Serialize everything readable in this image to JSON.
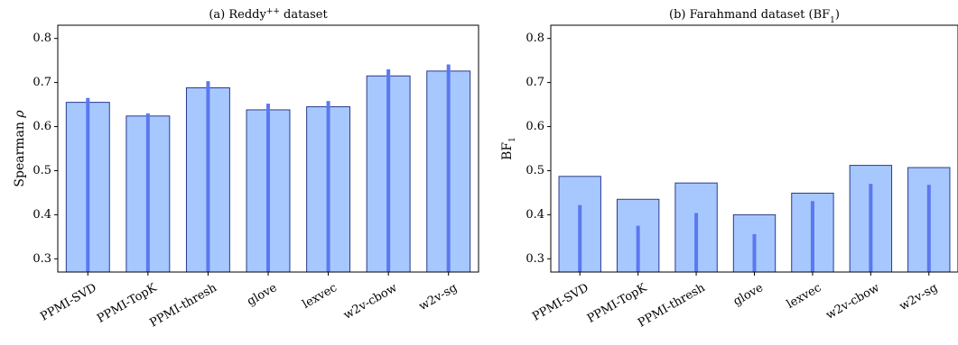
{
  "chart_data": [
    {
      "type": "bar",
      "title": "(a) Reddy++ dataset",
      "title_sup": "++",
      "xlabel": "",
      "ylabel": "Spearman ρ",
      "ylim": [
        0.27,
        0.83
      ],
      "yticks": [
        0.3,
        0.4,
        0.5,
        0.6,
        0.7,
        0.8
      ],
      "ytick_labels": [
        "0.3",
        "0.4",
        "0.5",
        "0.6",
        "0.7",
        "0.8"
      ],
      "categories": [
        "PPMI-SVD",
        "PPMI-TopK",
        "PPMI-thresh",
        "glove",
        "lexvec",
        "w2v-cbow",
        "w2v-sg"
      ],
      "series": [
        {
          "values": [
            0.655,
            0.624,
            0.688,
            0.638,
            0.645,
            0.715,
            0.726
          ]
        },
        {
          "values": [
            0.665,
            0.63,
            0.703,
            0.652,
            0.658,
            0.73,
            0.741
          ]
        }
      ],
      "grid": false,
      "colors": {
        "bar_fill": "#a6c8ff",
        "bar_edge": "#2a3a8c",
        "line": "#5b78f0"
      }
    },
    {
      "type": "bar",
      "title": "(b) Farahmand dataset (BF1)",
      "title_sub": "1",
      "xlabel": "",
      "ylabel": "BF1",
      "ylabel_sub": "1",
      "ylim": [
        0.27,
        0.83
      ],
      "yticks": [
        0.3,
        0.4,
        0.5,
        0.6,
        0.7,
        0.8
      ],
      "ytick_labels": [
        "0.3",
        "0.4",
        "0.5",
        "0.6",
        "0.7",
        "0.8"
      ],
      "categories": [
        "PPMI-SVD",
        "PPMI-TopK",
        "PPMI-thresh",
        "glove",
        "lexvec",
        "w2v-cbow",
        "w2v-sg"
      ],
      "series": [
        {
          "values": [
            0.487,
            0.435,
            0.472,
            0.4,
            0.449,
            0.512,
            0.507
          ]
        },
        {
          "values": [
            0.422,
            0.375,
            0.404,
            0.356,
            0.431,
            0.47,
            0.468
          ]
        }
      ],
      "grid": false,
      "colors": {
        "bar_fill": "#a6c8ff",
        "bar_edge": "#2a3a8c",
        "line": "#5b78f0"
      }
    }
  ]
}
